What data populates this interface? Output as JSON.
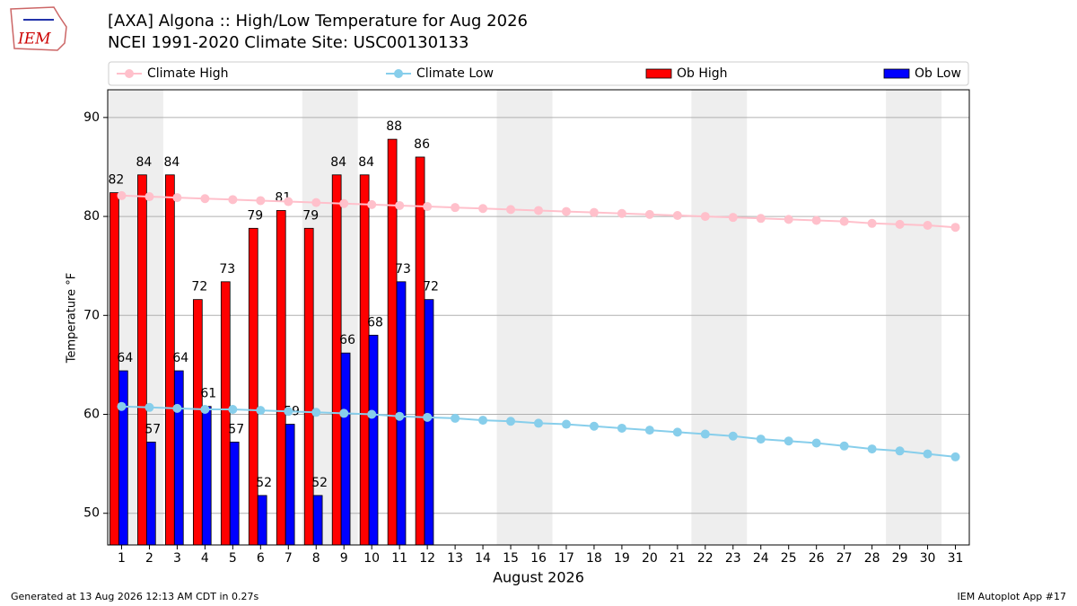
{
  "logo": "IEM",
  "footer_left": "Generated at 13 Aug 2026 12:13 AM CDT in 0.27s",
  "footer_right": "IEM Autoplot App #17",
  "chart_data": {
    "type": "bar_line",
    "title": "[AXA] Algona :: High/Low Temperature for Aug 2026",
    "subtitle": "NCEI 1991-2020 Climate Site: USC00130133",
    "xlabel": "August 2026",
    "ylabel": "Temperature °F",
    "x": [
      1,
      2,
      3,
      4,
      5,
      6,
      7,
      8,
      9,
      10,
      11,
      12,
      13,
      14,
      15,
      16,
      17,
      18,
      19,
      20,
      21,
      22,
      23,
      24,
      25,
      26,
      27,
      28,
      29,
      30,
      31
    ],
    "xlim": [
      0.5,
      31.5
    ],
    "xticks": [
      1,
      2,
      3,
      4,
      5,
      6,
      7,
      8,
      9,
      10,
      11,
      12,
      13,
      14,
      15,
      16,
      17,
      18,
      19,
      20,
      21,
      22,
      23,
      24,
      25,
      26,
      27,
      28,
      29,
      30,
      31
    ],
    "ylim": [
      46.8,
      92.8
    ],
    "yticks": [
      50,
      60,
      70,
      80,
      90
    ],
    "grid": true,
    "shaded_ranges": [
      [
        0.5,
        2.5
      ],
      [
        7.5,
        9.5
      ],
      [
        14.5,
        16.5
      ],
      [
        21.5,
        23.5
      ],
      [
        28.5,
        30.5
      ]
    ],
    "shade_color": "#eeeeee",
    "legend": "top",
    "series": [
      {
        "name": "Climate High",
        "kind": "line",
        "color": "pink",
        "values": [
          82.1,
          82.0,
          81.9,
          81.8,
          81.7,
          81.6,
          81.5,
          81.4,
          81.3,
          81.2,
          81.1,
          81.0,
          80.9,
          80.8,
          80.7,
          80.6,
          80.5,
          80.4,
          80.3,
          80.2,
          80.1,
          80.0,
          79.9,
          79.8,
          79.7,
          79.6,
          79.5,
          79.3,
          79.2,
          79.1,
          78.9
        ]
      },
      {
        "name": "Climate Low",
        "kind": "line",
        "color": "skyblue",
        "values": [
          60.8,
          60.7,
          60.6,
          60.5,
          60.5,
          60.4,
          60.3,
          60.2,
          60.1,
          60.0,
          59.8,
          59.7,
          59.6,
          59.4,
          59.3,
          59.1,
          59.0,
          58.8,
          58.6,
          58.4,
          58.2,
          58.0,
          57.8,
          57.5,
          57.3,
          57.1,
          56.8,
          56.5,
          56.3,
          56.0,
          55.7
        ]
      },
      {
        "name": "Ob High",
        "kind": "bar",
        "color": "#ff0000",
        "values": [
          82.4,
          84.2,
          84.2,
          71.6,
          73.4,
          78.8,
          80.6,
          78.8,
          84.2,
          84.2,
          87.8,
          86.0,
          null,
          null,
          null,
          null,
          null,
          null,
          null,
          null,
          null,
          null,
          null,
          null,
          null,
          null,
          null,
          null,
          null,
          null,
          null
        ],
        "value_labels": [
          "82",
          "84",
          "84",
          "72",
          "73",
          "79",
          "81",
          "79",
          "84",
          "84",
          "88",
          "86",
          null,
          null,
          null,
          null,
          null,
          null,
          null,
          null,
          null,
          null,
          null,
          null,
          null,
          null,
          null,
          null,
          null,
          null,
          null
        ]
      },
      {
        "name": "Ob Low",
        "kind": "bar",
        "color": "#0000ff",
        "values": [
          64.4,
          57.2,
          64.4,
          60.8,
          57.2,
          51.8,
          59.0,
          51.8,
          66.2,
          68.0,
          73.4,
          71.6,
          null,
          null,
          null,
          null,
          null,
          null,
          null,
          null,
          null,
          null,
          null,
          null,
          null,
          null,
          null,
          null,
          null,
          null,
          null
        ],
        "value_labels": [
          "64",
          "57",
          "64",
          "61",
          "57",
          "52",
          "59",
          "52",
          "66",
          "68",
          "73",
          "72",
          null,
          null,
          null,
          null,
          null,
          null,
          null,
          null,
          null,
          null,
          null,
          null,
          null,
          null,
          null,
          null,
          null,
          null,
          null
        ]
      }
    ]
  }
}
